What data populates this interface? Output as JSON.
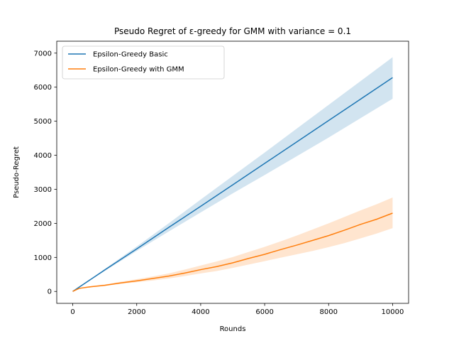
{
  "chart_data": {
    "type": "line",
    "title": "Pseudo Regret of ε-greedy for GMM with variance = 0.1",
    "xlabel": "Rounds",
    "ylabel": "Pseudo-Regret",
    "xlim": [
      -500,
      10500
    ],
    "ylim": [
      -350,
      7350
    ],
    "xticks": [
      0,
      2000,
      4000,
      6000,
      8000,
      10000
    ],
    "yticks": [
      0,
      1000,
      2000,
      3000,
      4000,
      5000,
      6000,
      7000
    ],
    "xtick_labels": [
      "0",
      "2000",
      "4000",
      "6000",
      "8000",
      "10000"
    ],
    "ytick_labels": [
      "0",
      "1000",
      "2000",
      "3000",
      "4000",
      "5000",
      "6000",
      "7000"
    ],
    "grid": false,
    "legend_position": "upper-left",
    "series": [
      {
        "name": "Epsilon-Greedy Basic",
        "color": "#1f77b4",
        "band_color": "#1f77b4",
        "x": [
          0,
          1000,
          2000,
          3000,
          4000,
          5000,
          6000,
          7000,
          8000,
          9000,
          10000
        ],
        "y": [
          0,
          630,
          1250,
          1880,
          2500,
          3130,
          3760,
          4390,
          5020,
          5650,
          6280
        ],
        "lower": [
          0,
          600,
          1190,
          1760,
          2320,
          2880,
          3420,
          3970,
          4520,
          5090,
          5660
        ],
        "upper": [
          0,
          660,
          1320,
          2000,
          2700,
          3390,
          4080,
          4780,
          5480,
          6180,
          6880
        ]
      },
      {
        "name": "Epsilon-Greedy with GMM",
        "color": "#ff7f0e",
        "band_color": "#ff7f0e",
        "x": [
          0,
          200,
          500,
          1000,
          1500,
          2000,
          2500,
          3000,
          3500,
          4000,
          4500,
          5000,
          5500,
          6000,
          6500,
          7000,
          7500,
          8000,
          8500,
          9000,
          9500,
          10000
        ],
        "y": [
          0,
          90,
          130,
          180,
          250,
          310,
          380,
          450,
          540,
          640,
          730,
          840,
          970,
          1090,
          1230,
          1360,
          1500,
          1640,
          1800,
          1970,
          2120,
          2300
        ],
        "lower": [
          0,
          80,
          115,
          160,
          220,
          270,
          320,
          380,
          450,
          530,
          600,
          690,
          790,
          890,
          990,
          1090,
          1190,
          1300,
          1420,
          1560,
          1700,
          1860
        ],
        "upper": [
          0,
          100,
          145,
          205,
          285,
          360,
          440,
          530,
          640,
          760,
          880,
          1010,
          1160,
          1310,
          1470,
          1640,
          1820,
          2000,
          2190,
          2380,
          2560,
          2760
        ]
      }
    ]
  }
}
